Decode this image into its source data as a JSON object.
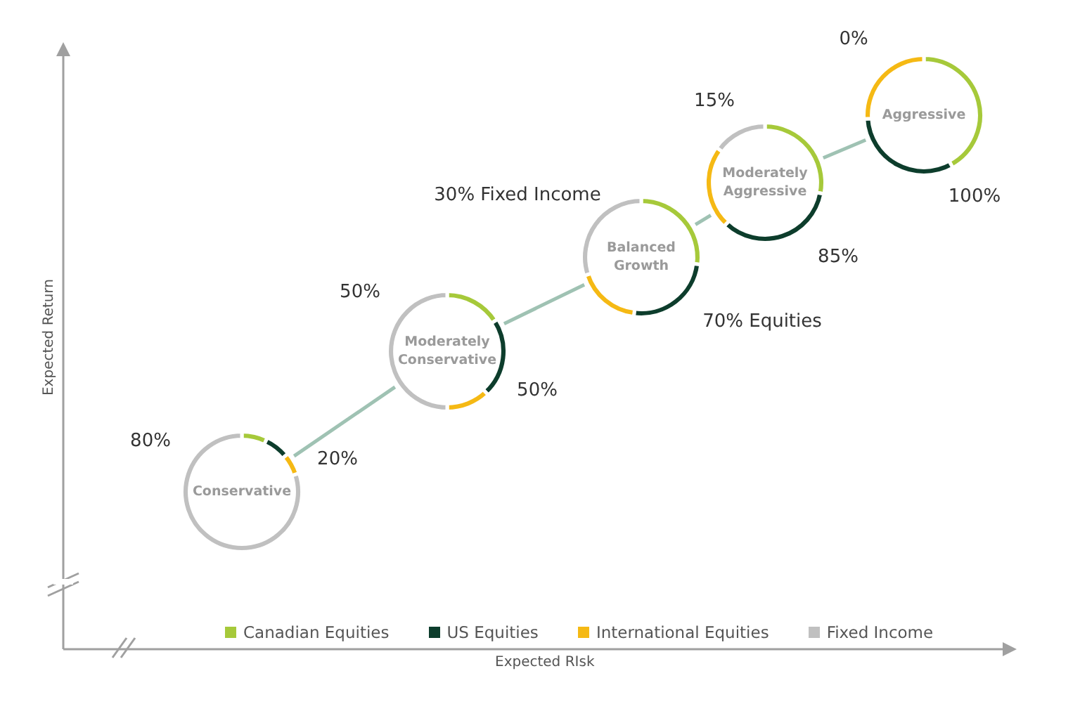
{
  "chart_data": [
    {
      "type": "donut",
      "title": "Conservative",
      "categories": [
        "Canadian Equities",
        "US Equities",
        "International Equities",
        "Fixed Income"
      ],
      "values": [
        7,
        7,
        6,
        80
      ],
      "colors": [
        "#a6c93a",
        "#0d3d2c",
        "#f5b914",
        "#c0c0c0"
      ],
      "annotations": [
        "80%",
        "20%"
      ],
      "legend": "bottom"
    },
    {
      "type": "donut",
      "title": "Moderately Conservative",
      "categories": [
        null,
        null,
        null,
        null
      ],
      "values": [
        16,
        22,
        12,
        50
      ],
      "colors": [
        "#a6c93a",
        "#0d3d2c",
        "#f5b914",
        "#c0c0c0"
      ],
      "annotations": [
        "50%",
        "50%"
      ]
    },
    {
      "type": "donut",
      "title": "Balanced Growth",
      "categories": [
        null,
        null,
        null,
        null
      ],
      "values": [
        27,
        25,
        18,
        30
      ],
      "colors": [
        "#a6c93a",
        "#0d3d2c",
        "#f5b914",
        "#c0c0c0"
      ],
      "annotations": [
        "30% Fixed Income",
        "70% Equities"
      ]
    },
    {
      "type": "donut",
      "title": "Moderately Aggressive",
      "categories": [
        null,
        null,
        null,
        null
      ],
      "values": [
        28,
        34,
        23,
        15
      ],
      "colors": [
        "#a6c93a",
        "#0d3d2c",
        "#f5b914",
        "#c0c0c0"
      ],
      "annotations": [
        "15%",
        "85%"
      ]
    },
    {
      "type": "donut",
      "title": "Aggressive",
      "categories": [
        null,
        null,
        null,
        null
      ],
      "values": [
        42,
        32,
        26,
        0
      ],
      "colors": [
        "#a6c93a",
        "#0d3d2c",
        "#f5b914",
        "#c0c0c0"
      ],
      "annotations": [
        "0%",
        "100%"
      ]
    },
    {
      "type": "other",
      "xlabel": "Expected RIsk",
      "ylabel": "Expected Return"
    }
  ]
}
